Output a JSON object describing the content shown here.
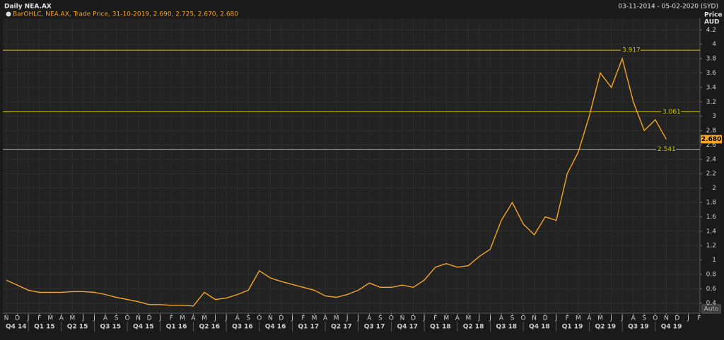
{
  "chart_data": {
    "type": "line",
    "title": "Daily NEA.AX",
    "date_range": "03-11-2014 - 05-02-2020 (SYD)",
    "legend_text": "BarOHLC, NEA.AX, Trade Price, 31-10-2019, 2.690, 2.725, 2.670, 2.680",
    "y_axis_title": "Price",
    "y_axis_unit": "AUD",
    "button": "Auto",
    "categories": [
      "N",
      "D",
      "J",
      "F",
      "M",
      "A",
      "M",
      "J",
      "J",
      "A",
      "S",
      "O",
      "N",
      "D",
      "J",
      "F",
      "M",
      "A",
      "M",
      "J",
      "J",
      "A",
      "S",
      "O",
      "N",
      "D",
      "J",
      "F",
      "M",
      "A",
      "M",
      "J",
      "J",
      "A",
      "S",
      "O",
      "N",
      "D",
      "J",
      "F",
      "M",
      "A",
      "M",
      "J",
      "J",
      "A",
      "S",
      "O",
      "N",
      "D",
      "J",
      "F",
      "M",
      "A",
      "M",
      "J",
      "J",
      "A",
      "S",
      "O",
      "N",
      "D",
      "J",
      "F"
    ],
    "quarters": [
      "Q4 14",
      "Q1 15",
      "Q2 15",
      "Q3 15",
      "Q4 15",
      "Q1 16",
      "Q2 16",
      "Q3 16",
      "Q4 16",
      "Q1 17",
      "Q2 17",
      "Q3 17",
      "Q4 17",
      "Q1 18",
      "Q2 18",
      "Q3 18",
      "Q4 18",
      "Q1 19",
      "Q2 19",
      "Q3 19",
      "Q4 19"
    ],
    "series": [
      {
        "name": "NEA.AX",
        "color": "#f5a623",
        "values": [
          0.72,
          0.65,
          0.58,
          0.55,
          0.55,
          0.55,
          0.56,
          0.56,
          0.55,
          0.52,
          0.48,
          0.45,
          0.42,
          0.38,
          0.38,
          0.37,
          0.37,
          0.36,
          0.55,
          0.45,
          0.47,
          0.52,
          0.58,
          0.85,
          0.75,
          0.7,
          0.66,
          0.62,
          0.58,
          0.5,
          0.48,
          0.52,
          0.58,
          0.68,
          0.62,
          0.62,
          0.65,
          0.62,
          0.72,
          0.9,
          0.95,
          0.9,
          0.92,
          1.05,
          1.15,
          1.55,
          1.8,
          1.5,
          1.35,
          1.6,
          1.55,
          2.2,
          2.5,
          3.0,
          3.6,
          3.4,
          3.8,
          3.2,
          2.8,
          2.95,
          2.68,
          null,
          null,
          null
        ]
      }
    ],
    "levels": [
      3.917,
      3.061,
      2.541
    ],
    "level_color": "#c8c800",
    "last_price": {
      "value": 2.68,
      "label": "2.680"
    },
    "ylim": [
      0.26,
      4.36
    ],
    "yticks": [
      0.4,
      0.6,
      0.8,
      1,
      1.2,
      1.4,
      1.6,
      1.8,
      2,
      2.2,
      2.4,
      2.6,
      2.8,
      3,
      3.2,
      3.4,
      3.6,
      3.8,
      4,
      4.2
    ],
    "grid": true
  }
}
